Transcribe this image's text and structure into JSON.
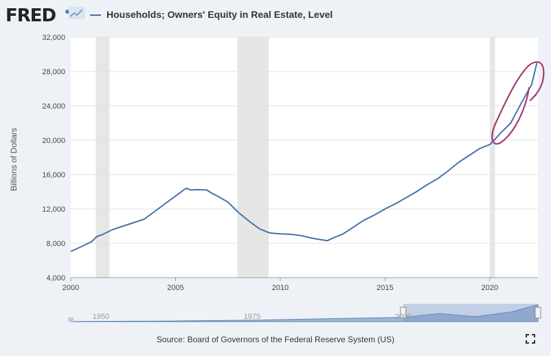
{
  "header": {
    "logo": "FRED",
    "series_title": "Households; Owners' Equity in Real Estate, Level"
  },
  "source": "Source: Board of Governors of the Federal Reserve System (US)",
  "icons": {
    "logo_spark": "line-chart-icon",
    "fullscreen": "fullscreen-icon"
  },
  "colors": {
    "line": "#4572a7",
    "recession": "#e6e6e6",
    "annotation": "#a33a6e"
  },
  "chart_data": {
    "type": "line",
    "ylabel": "Billions of Dollars",
    "xlim": [
      2000,
      2022.3
    ],
    "ylim": [
      4000,
      32000
    ],
    "yticks": [
      4000,
      8000,
      12000,
      16000,
      20000,
      24000,
      28000,
      32000
    ],
    "ytick_labels": [
      "4,000",
      "8,000",
      "12,000",
      "16,000",
      "20,000",
      "24,000",
      "28,000",
      "32,000"
    ],
    "xticks": [
      2000,
      2005,
      2010,
      2015,
      2020
    ],
    "xtick_labels": [
      "2000",
      "2005",
      "2010",
      "2015",
      "2020"
    ],
    "grid": true,
    "recessions": [
      [
        2001.2,
        2001.85
      ],
      [
        2007.95,
        2009.45
      ],
      [
        2020.0,
        2020.25
      ]
    ],
    "series": [
      {
        "x": [
          2000.0,
          2000.5,
          2001.0,
          2001.25,
          2001.5,
          2002.0,
          2002.5,
          2003.0,
          2003.5,
          2004.0,
          2004.5,
          2005.0,
          2005.5,
          2005.75,
          2006.0,
          2006.5,
          2006.75,
          2007.0,
          2007.5,
          2008.0,
          2008.5,
          2009.0,
          2009.5,
          2010.0,
          2010.5,
          2011.0,
          2011.5,
          2012.0,
          2012.25,
          2012.5,
          2013.0,
          2013.5,
          2014.0,
          2014.5,
          2015.0,
          2015.5,
          2016.0,
          2016.5,
          2017.0,
          2017.5,
          2018.0,
          2018.5,
          2019.0,
          2019.5,
          2020.0,
          2020.25,
          2020.5,
          2021.0,
          2021.5,
          2022.0,
          2022.25
        ],
        "y": [
          7050,
          7600,
          8200,
          8800,
          9000,
          9600,
          10000,
          10400,
          10800,
          11700,
          12600,
          13500,
          14400,
          14200,
          14250,
          14200,
          13800,
          13500,
          12800,
          11600,
          10600,
          9700,
          9200,
          9100,
          9050,
          8900,
          8600,
          8400,
          8300,
          8600,
          9100,
          9900,
          10700,
          11300,
          12000,
          12600,
          13300,
          14000,
          14800,
          15500,
          16400,
          17400,
          18200,
          19000,
          19500,
          20100,
          20800,
          22000,
          24300,
          26500,
          29000
        ]
      }
    ],
    "navigator": {
      "labels": [
        "1950",
        "1975",
        "2000"
      ],
      "range": [
        1945,
        2022.3
      ],
      "selected": [
        2000,
        2022.3
      ]
    }
  }
}
